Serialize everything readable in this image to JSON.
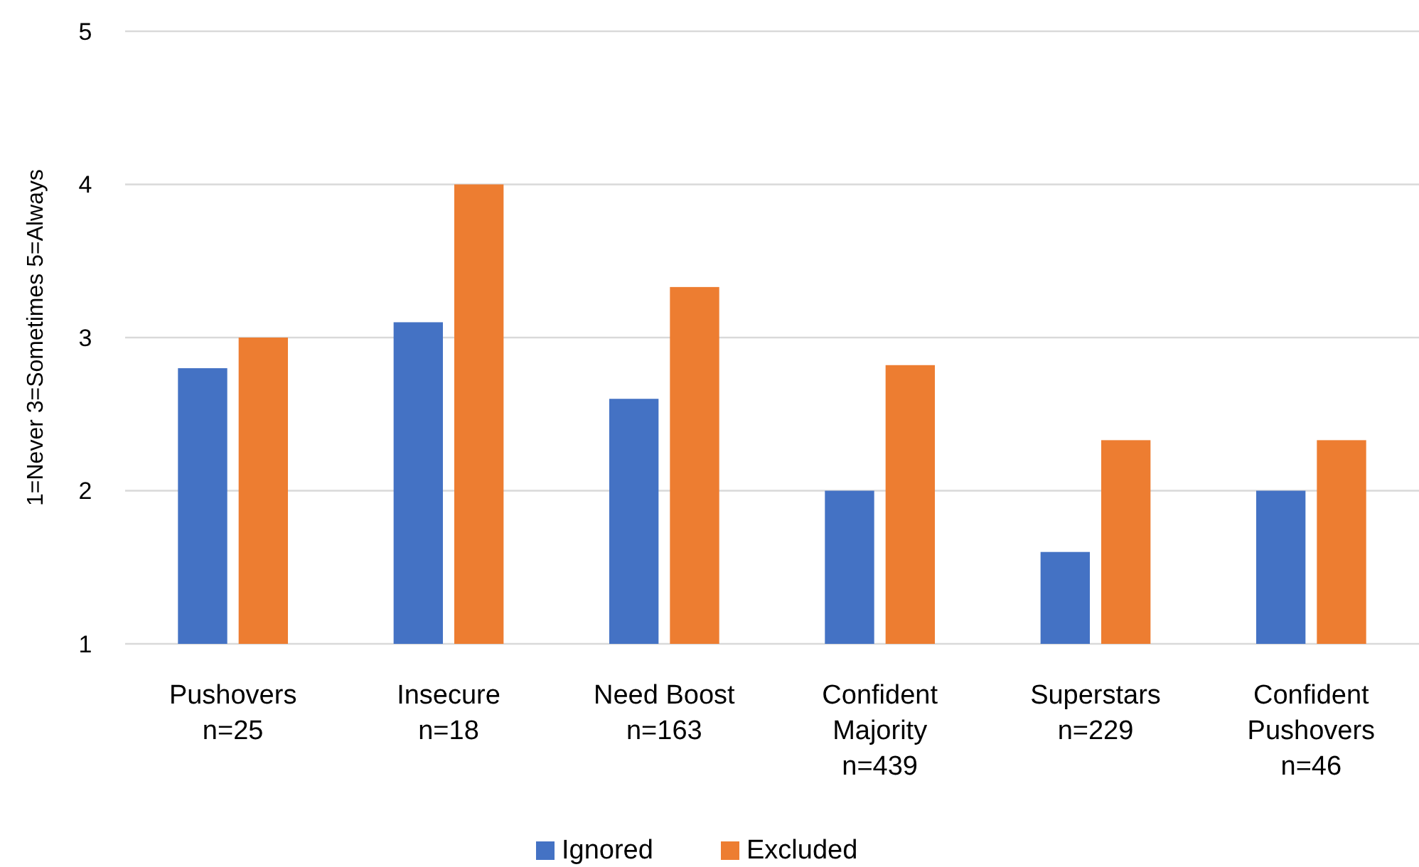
{
  "chart_data": {
    "type": "bar",
    "ylabel": "1=Never 3=Sometimes 5=Always",
    "categories": [
      "Pushovers\nn=25",
      "Insecure\nn=18",
      "Need Boost\nn=163",
      "Confident\nMajority\nn=439",
      "Superstars\nn=229",
      "Confident\nPushovers\nn=46"
    ],
    "series": [
      {
        "name": "Ignored",
        "color": "#4472c4",
        "values": [
          2.8,
          3.1,
          2.6,
          2.0,
          1.6,
          2.0
        ]
      },
      {
        "name": "Excluded",
        "color": "#ed7d31",
        "values": [
          3.0,
          4.0,
          3.33,
          2.82,
          2.33,
          2.33
        ]
      }
    ],
    "ylim": [
      1,
      5
    ],
    "yticks": [
      1,
      2,
      3,
      4,
      5
    ],
    "grid": "y",
    "legend": "bottom"
  }
}
